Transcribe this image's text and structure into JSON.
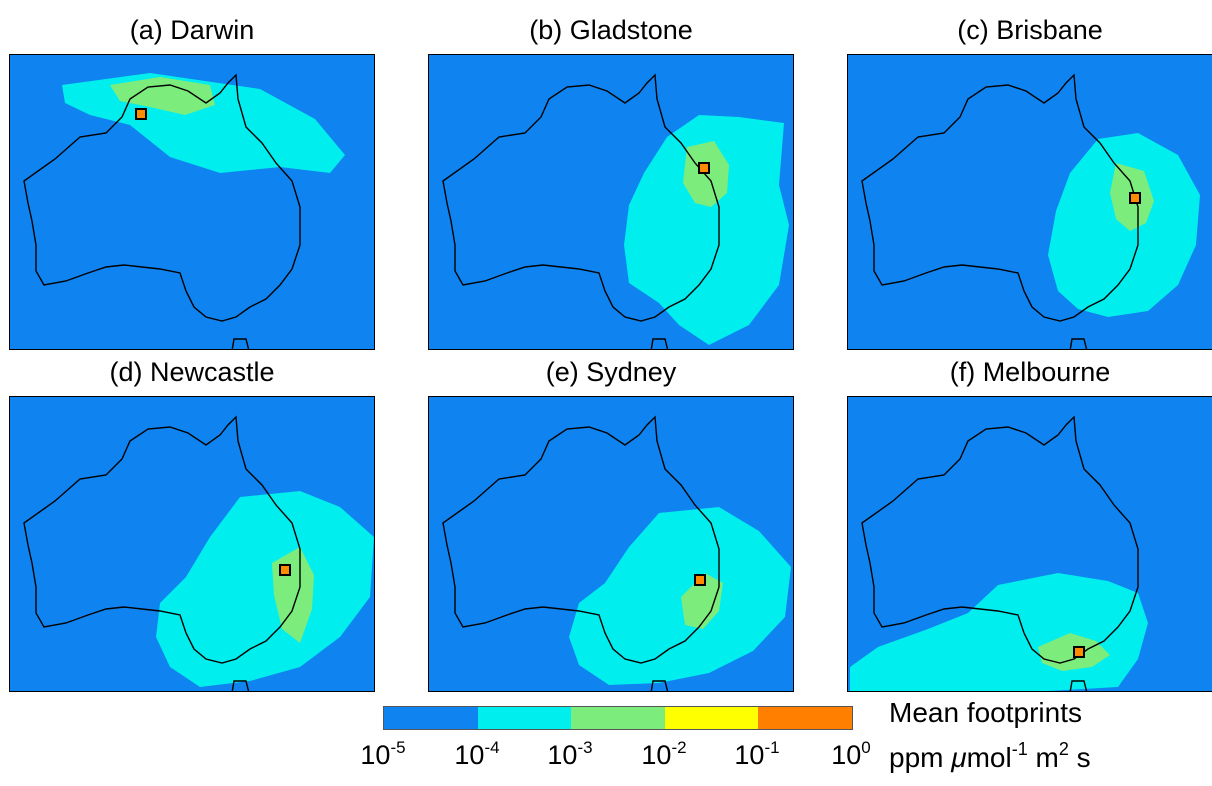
{
  "panels": [
    {
      "title": "(a) Darwin",
      "site": "Darwin"
    },
    {
      "title": "(b) Gladstone",
      "site": "Gladstone"
    },
    {
      "title": "(c) Brisbane",
      "site": "Brisbane"
    },
    {
      "title": "(d) Newcastle",
      "site": "Newcastle"
    },
    {
      "title": "(e) Sydney",
      "site": "Sydney"
    },
    {
      "title": "(f) Melbourne",
      "site": "Melbourne"
    }
  ],
  "colorbar": {
    "title": "Mean footprints",
    "units": {
      "prefix": "ppm ",
      "mu": "μ",
      "mol": "mol",
      "mol_exp": "-1",
      "m": " m",
      "m_exp": "2",
      "s": " s"
    },
    "ticks": [
      {
        "base": "10",
        "exp": "-5"
      },
      {
        "base": "10",
        "exp": "-4"
      },
      {
        "base": "10",
        "exp": "-3"
      },
      {
        "base": "10",
        "exp": "-2"
      },
      {
        "base": "10",
        "exp": "-1"
      },
      {
        "base": "10",
        "exp": "0"
      }
    ],
    "colors": [
      "#0f83f0",
      "#00eeee",
      "#7ced7c",
      "#ffff00",
      "#ff8000"
    ]
  },
  "colors": {
    "ocean_background": "#0f83f0",
    "footprint_low": "#00eeee",
    "footprint_mid": "#7ced7c",
    "coastline": "#000000",
    "site_marker_fill": "#ff8c00",
    "site_marker_border": "#000000"
  }
}
